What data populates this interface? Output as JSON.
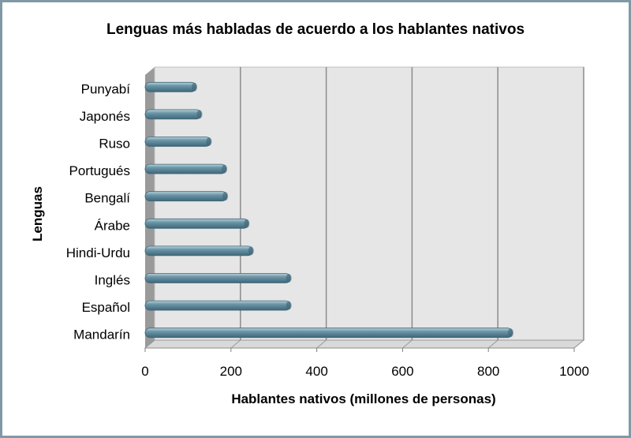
{
  "chart_data": {
    "type": "bar",
    "orientation": "horizontal",
    "title": "Lenguas más habladas de acuerdo a los hablantes nativos",
    "xlabel": "Hablantes nativos (millones de personas)",
    "ylabel": "Lenguas",
    "categories": [
      "Mandarín",
      "Español",
      "Inglés",
      "Hindi-Urdu",
      "Árabe",
      "Bengalí",
      "Portugués",
      "Ruso",
      "Japonés",
      "Punyabí"
    ],
    "values": [
      850,
      333,
      333,
      245,
      235,
      185,
      183,
      147,
      125,
      113
    ],
    "xlim": [
      0,
      1000
    ],
    "xticks": [
      "0",
      "200",
      "400",
      "600",
      "800",
      "1000"
    ],
    "xtick_values": [
      0,
      200,
      400,
      600,
      800,
      1000
    ],
    "grid": true,
    "legend": "none",
    "colors": {
      "bar": "#6c97a8",
      "bar_dark": "#3f6678",
      "bar_light": "#b9d3dd",
      "plot_bg": "#e6e6e6",
      "wall": "#9a9a9a",
      "gridline": "#8c8c8c",
      "frame_border": "#7f9aa6"
    }
  }
}
